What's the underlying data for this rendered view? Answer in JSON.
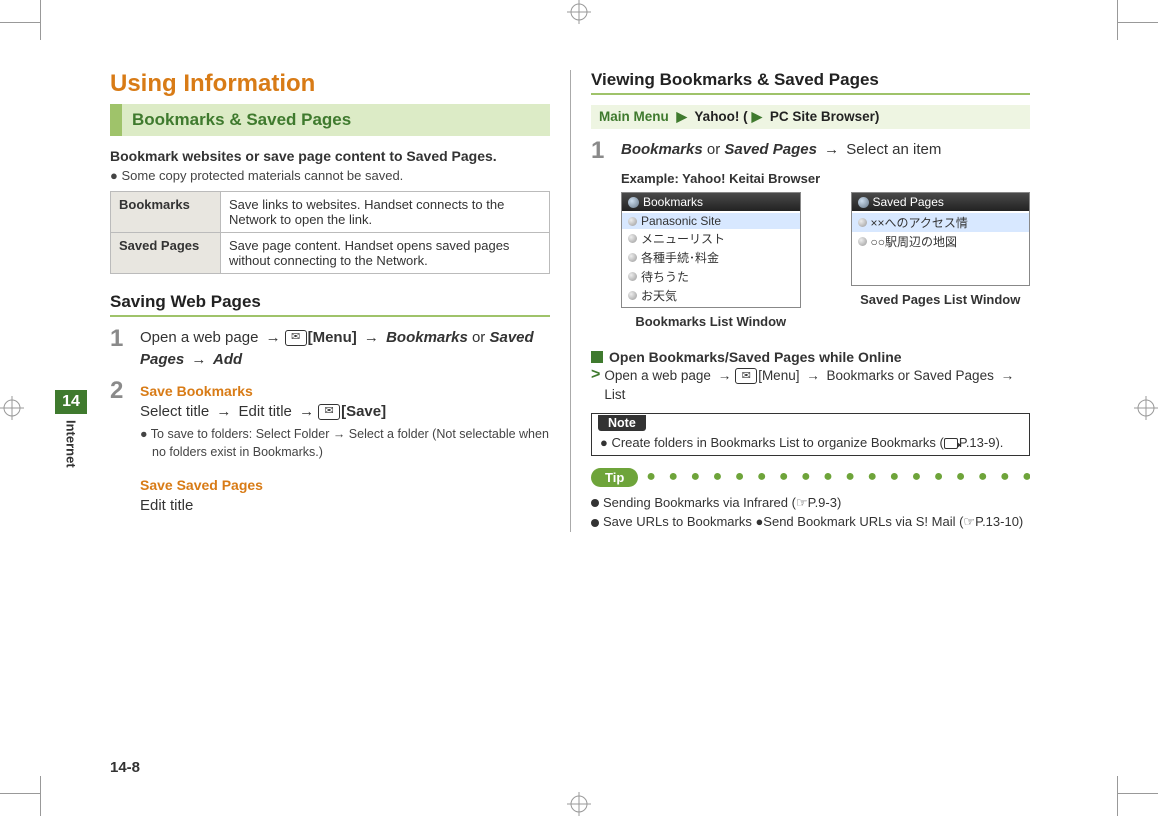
{
  "crop_marks": true,
  "side_tab": {
    "number": "14",
    "label": "Internet"
  },
  "page_number": "14-8",
  "left": {
    "h1": "Using Information",
    "h2": "Bookmarks & Saved Pages",
    "intro_bold": "Bookmark websites or save page content to Saved Pages.",
    "intro_note": "● Some copy protected materials cannot be saved.",
    "def_table": {
      "rows": [
        {
          "term": "Bookmarks",
          "desc": "Save links to websites. Handset connects to the Network to open the link."
        },
        {
          "term": "Saved Pages",
          "desc": "Save page content. Handset opens saved pages without connecting to the Network."
        }
      ]
    },
    "h3": "Saving Web Pages",
    "steps": [
      {
        "num": "1",
        "body_parts": [
          {
            "t": "Open a web page "
          },
          {
            "arrow": "→"
          },
          {
            "key": "✉"
          },
          {
            "b": "[Menu] "
          },
          {
            "arrow": "→"
          },
          {
            "bi": " Bookmarks "
          },
          {
            "t": "or "
          },
          {
            "bi": "Saved Pages "
          },
          {
            "arrow": "→"
          },
          {
            "bi": " Add"
          }
        ]
      },
      {
        "num": "2",
        "sub_title_a": "Save Bookmarks",
        "body_parts_a": [
          {
            "t": "Select title "
          },
          {
            "arrow": "→"
          },
          {
            "t": " Edit title "
          },
          {
            "arrow": "→"
          },
          {
            "key": "✉"
          },
          {
            "b": "[Save]"
          }
        ],
        "sub_bullet": "● To save to folders: Select Folder → Select a folder (Not selectable when no folders exist in Bookmarks.)",
        "sub_title_b": "Save Saved Pages",
        "body_b": "Edit title"
      }
    ]
  },
  "right": {
    "h3": "Viewing Bookmarks & Saved Pages",
    "nav_path": {
      "seg1": "Main Menu",
      "seg2": "Yahoo! (",
      "seg3": "PC Site Browser)"
    },
    "step1": {
      "num": "1",
      "parts": [
        {
          "bi": "Bookmarks "
        },
        {
          "t": "or "
        },
        {
          "bi": "Saved Pages "
        },
        {
          "arrow": "→"
        },
        {
          "t": " Select an item"
        }
      ],
      "example_label": "Example: Yahoo! Keitai Browser"
    },
    "shots": {
      "bookmarks": {
        "header": "Bookmarks",
        "items": [
          "Panasonic Site",
          "メニューリスト",
          "各種手続･料金",
          "待ちうた",
          "お天気"
        ],
        "highlight_index": 0,
        "caption": "Bookmarks List Window"
      },
      "saved": {
        "header": "Saved Pages",
        "items": [
          "××へのアクセス情",
          "○○駅周辺の地図"
        ],
        "highlight_index": 0,
        "caption": "Saved Pages List Window"
      }
    },
    "open_online": {
      "title": "Open Bookmarks/Saved Pages while Online",
      "line_parts": [
        {
          "t": "Open a web page "
        },
        {
          "arrow": "→"
        },
        {
          "key": "✉"
        },
        {
          "b": "[Menu] "
        },
        {
          "arrow": "→"
        },
        {
          "bi": " Bookmarks "
        },
        {
          "t": "or "
        },
        {
          "bi": "Saved Pages "
        },
        {
          "arrow": "→"
        },
        {
          "bi": " List"
        }
      ]
    },
    "note": {
      "label": "Note",
      "text_pre": "● Create folders in Bookmarks List to organize Bookmarks (",
      "ref": "P.13-9).",
      "full": "● Create folders in Bookmarks List to organize Bookmarks (☞P.13-9)."
    },
    "tip": {
      "label": "Tip",
      "lines": [
        "Sending Bookmarks via Infrared (☞P.9-3)",
        "Save URLs to Bookmarks ●Send Bookmark URLs via S! Mail (☞P.13-10)"
      ]
    }
  }
}
